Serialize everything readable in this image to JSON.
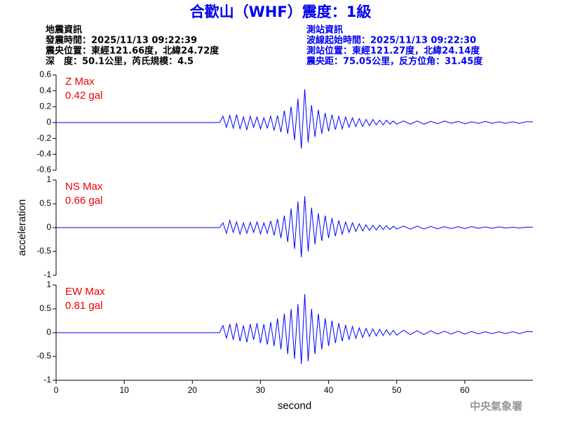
{
  "header": {
    "title": "合歡山（WHF）震度：1級",
    "left": [
      "地震資訊",
      "發震時間：2025/11/13 09:22:39",
      "震央位置：東經121.66度，北緯24.72度",
      "深　度：50.1公里，芮氏規模：4.5"
    ],
    "right": [
      "測站資訊",
      "波線起始時間：2025/11/13 09:22:30",
      "測站位置：東經121.27度，北緯24.14度",
      "震央距：75.05公里，反方位角：31.45度"
    ]
  },
  "footer": "中央氣象署",
  "chart_data": [
    {
      "type": "line",
      "color": "#0000ff",
      "annotations": [
        "Z Max",
        "0.42 gal"
      ],
      "annotation_color": "#ee0000",
      "xlim": [
        0,
        70
      ],
      "ylim": [
        -0.6,
        0.6
      ],
      "yticks": [
        0.6,
        0.4,
        0.2,
        0,
        -0.2,
        -0.4,
        -0.6
      ],
      "x": [
        0,
        24,
        24.5,
        25,
        25.5,
        26,
        26.5,
        27,
        27.5,
        28,
        28.5,
        29,
        29.5,
        30,
        30.5,
        31,
        31.5,
        32,
        32.5,
        33,
        33.5,
        34,
        34.5,
        35,
        35.5,
        36,
        36.5,
        37,
        37.5,
        38,
        38.5,
        39,
        39.5,
        40,
        40.5,
        41,
        41.5,
        42,
        42.5,
        43,
        43.5,
        44,
        44.5,
        45,
        45.5,
        46,
        46.5,
        47,
        47.5,
        48,
        48.5,
        49,
        49.5,
        50,
        51,
        52,
        53,
        54,
        55,
        56,
        57,
        58,
        59,
        60,
        61,
        62,
        63,
        64,
        65,
        66,
        67,
        68,
        69
      ],
      "values": [
        0,
        0,
        0.08,
        -0.06,
        0.09,
        -0.07,
        0.1,
        -0.08,
        0.07,
        -0.09,
        0.08,
        -0.06,
        0.07,
        -0.08,
        0.06,
        -0.07,
        0.08,
        -0.1,
        0.09,
        -0.12,
        0.15,
        -0.14,
        0.2,
        -0.22,
        0.3,
        -0.33,
        0.42,
        -0.25,
        0.22,
        -0.18,
        0.16,
        -0.14,
        0.12,
        -0.11,
        0.1,
        -0.09,
        0.08,
        -0.08,
        0.07,
        -0.06,
        0.06,
        -0.05,
        0.05,
        -0.05,
        0.04,
        -0.04,
        0.04,
        -0.03,
        0.03,
        -0.03,
        0.03,
        -0.02,
        0.02,
        -0.02,
        0.02,
        -0.02,
        0.02,
        -0.02,
        0.015,
        -0.015,
        0.02,
        -0.01,
        0.015,
        -0.015,
        0.01,
        -0.01,
        0.015,
        -0.01,
        0.01,
        -0.01,
        0.01,
        -0.01,
        0.01
      ]
    },
    {
      "type": "line",
      "color": "#0000ff",
      "annotations": [
        "NS Max",
        "0.66 gal"
      ],
      "annotation_color": "#ee0000",
      "ylabel": "acceleration",
      "xlim": [
        0,
        70
      ],
      "ylim": [
        -1,
        1
      ],
      "yticks": [
        1,
        0.5,
        0,
        -0.5,
        -1
      ],
      "x": [
        0,
        24,
        24.5,
        25,
        25.5,
        26,
        26.5,
        27,
        27.5,
        28,
        28.5,
        29,
        29.5,
        30,
        30.5,
        31,
        31.5,
        32,
        32.5,
        33,
        33.5,
        34,
        34.5,
        35,
        35.5,
        36,
        36.5,
        37,
        37.5,
        38,
        38.5,
        39,
        39.5,
        40,
        40.5,
        41,
        41.5,
        42,
        42.5,
        43,
        43.5,
        44,
        44.5,
        45,
        45.5,
        46,
        46.5,
        47,
        47.5,
        48,
        48.5,
        49,
        49.5,
        50,
        51,
        52,
        53,
        54,
        55,
        56,
        57,
        58,
        59,
        60,
        61,
        62,
        63,
        64,
        65,
        66,
        67,
        68,
        69
      ],
      "values": [
        0,
        0,
        0.1,
        -0.12,
        0.15,
        -0.1,
        0.12,
        -0.14,
        0.1,
        -0.12,
        0.11,
        -0.1,
        0.12,
        -0.13,
        0.1,
        -0.12,
        0.14,
        -0.16,
        0.18,
        -0.22,
        0.25,
        -0.3,
        0.4,
        -0.45,
        0.55,
        -0.62,
        0.66,
        -0.5,
        0.42,
        -0.35,
        0.3,
        -0.28,
        0.25,
        -0.22,
        0.2,
        -0.18,
        0.15,
        -0.14,
        0.12,
        -0.1,
        0.1,
        -0.08,
        0.08,
        -0.07,
        0.06,
        -0.06,
        0.05,
        -0.05,
        0.05,
        -0.04,
        0.04,
        -0.04,
        0.03,
        -0.03,
        0.03,
        -0.03,
        0.03,
        -0.03,
        0.025,
        -0.025,
        0.02,
        -0.02,
        0.02,
        -0.02,
        0.02,
        -0.015,
        0.015,
        -0.015,
        0.015,
        -0.01,
        0.01,
        -0.01,
        0.01
      ]
    },
    {
      "type": "line",
      "color": "#0000ff",
      "annotations": [
        "EW Max",
        "0.81 gal"
      ],
      "annotation_color": "#ee0000",
      "xlabel": "second",
      "xlim": [
        0,
        70
      ],
      "xticks": [
        0,
        10,
        20,
        30,
        40,
        50,
        60
      ],
      "ylim": [
        -1,
        1
      ],
      "yticks": [
        1,
        0.5,
        0,
        -0.5,
        -1
      ],
      "x": [
        0,
        24,
        24.5,
        25,
        25.5,
        26,
        26.5,
        27,
        27.5,
        28,
        28.5,
        29,
        29.5,
        30,
        30.5,
        31,
        31.5,
        32,
        32.5,
        33,
        33.5,
        34,
        34.5,
        35,
        35.5,
        36,
        36.5,
        37,
        37.5,
        38,
        38.5,
        39,
        39.5,
        40,
        40.5,
        41,
        41.5,
        42,
        42.5,
        43,
        43.5,
        44,
        44.5,
        45,
        45.5,
        46,
        46.5,
        47,
        47.5,
        48,
        48.5,
        49,
        49.5,
        50,
        51,
        52,
        53,
        54,
        55,
        56,
        57,
        58,
        59,
        60,
        61,
        62,
        63,
        64,
        65,
        66,
        67,
        68,
        69
      ],
      "values": [
        0,
        0,
        0.15,
        -0.12,
        0.18,
        -0.15,
        0.2,
        -0.18,
        0.15,
        -0.2,
        0.18,
        -0.15,
        0.2,
        -0.22,
        0.18,
        -0.25,
        0.22,
        -0.28,
        0.3,
        -0.35,
        0.4,
        -0.45,
        0.5,
        -0.55,
        0.6,
        -0.66,
        0.81,
        -0.6,
        0.5,
        -0.45,
        0.4,
        -0.35,
        0.3,
        -0.28,
        0.25,
        -0.22,
        0.2,
        -0.18,
        0.16,
        -0.15,
        0.13,
        -0.12,
        0.1,
        -0.1,
        0.09,
        -0.08,
        0.08,
        -0.07,
        0.07,
        -0.06,
        0.06,
        -0.05,
        0.05,
        -0.05,
        0.05,
        -0.04,
        0.04,
        -0.04,
        0.04,
        -0.03,
        0.03,
        -0.03,
        0.03,
        -0.03,
        0.025,
        -0.025,
        0.02,
        -0.02,
        0.02,
        -0.02,
        0.02,
        -0.02,
        0.02
      ]
    }
  ]
}
